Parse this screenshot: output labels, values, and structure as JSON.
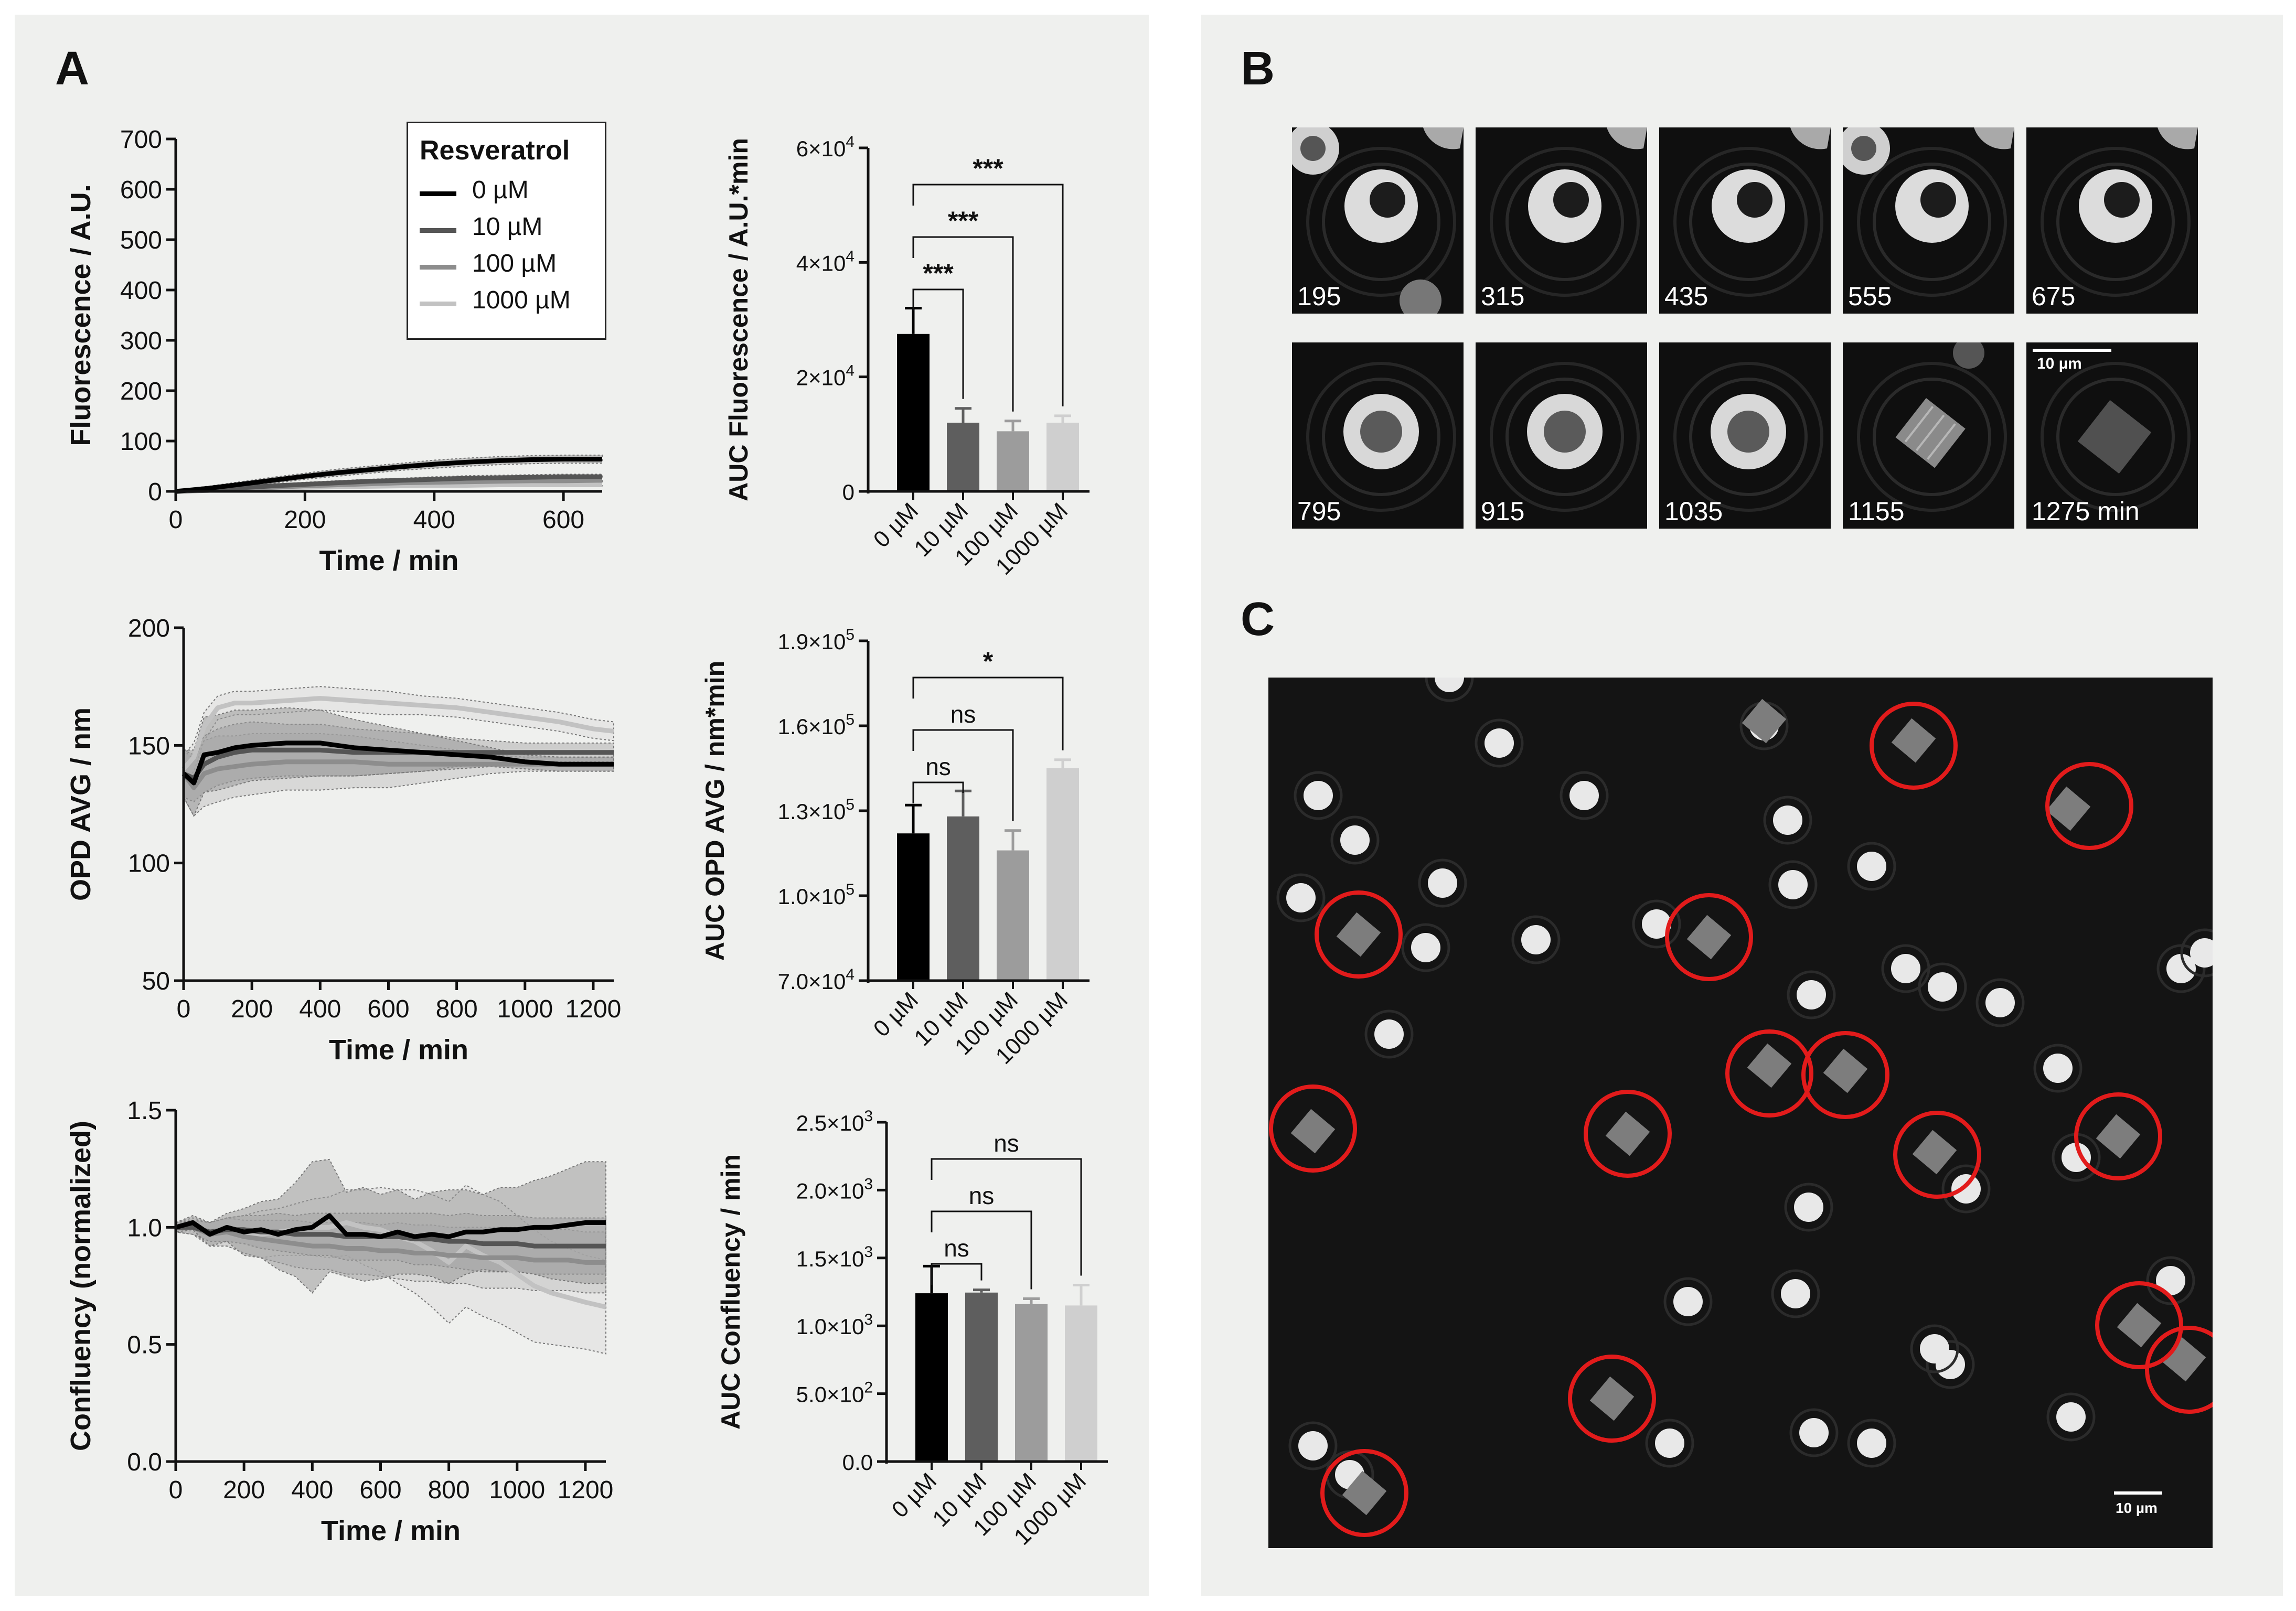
{
  "panels": {
    "a": "A",
    "b": "B",
    "c": "C"
  },
  "legend": {
    "title": "Resveratrol",
    "items": [
      "0 µM",
      "10 µM",
      "100 µM",
      "1000 µM"
    ]
  },
  "colors": {
    "series": [
      "#000000",
      "#555555",
      "#8d8d8d",
      "#c2c2c2"
    ],
    "panel_bg": "#eff0ee",
    "highlight_circle": "#e21b1b"
  },
  "chart_data": [
    {
      "id": "fluor_time",
      "type": "line",
      "ylabel": "Fluorescence / A.U.",
      "xlabel": "Time / min",
      "xlim": [
        0,
        660
      ],
      "ylim": [
        0,
        700
      ],
      "x_ticks": [
        "0",
        "200",
        "400",
        "600"
      ],
      "y_ticks": [
        "0",
        "100",
        "200",
        "300",
        "400",
        "500",
        "600",
        "700"
      ],
      "legend": "top-right",
      "series": [
        {
          "name": "0 µM",
          "x": [
            0,
            50,
            100,
            150,
            200,
            250,
            300,
            350,
            400,
            450,
            500,
            550,
            600,
            660
          ],
          "y": [
            0,
            6,
            14,
            22,
            30,
            37,
            43,
            49,
            54,
            58,
            61,
            63,
            64,
            64
          ],
          "band": [
            3,
            4,
            5,
            6,
            6,
            7,
            7,
            7,
            8,
            8,
            8,
            8,
            8,
            8
          ]
        },
        {
          "name": "10 µM",
          "x": [
            0,
            50,
            100,
            150,
            200,
            250,
            300,
            350,
            400,
            450,
            500,
            550,
            600,
            660
          ],
          "y": [
            0,
            3,
            7,
            11,
            14,
            17,
            20,
            22,
            24,
            26,
            27,
            28,
            29,
            29
          ],
          "band": [
            2,
            3,
            3,
            3,
            4,
            4,
            4,
            4,
            5,
            5,
            5,
            5,
            5,
            5
          ]
        },
        {
          "name": "100 µM",
          "x": [
            0,
            50,
            100,
            150,
            200,
            250,
            300,
            350,
            400,
            450,
            500,
            550,
            600,
            660
          ],
          "y": [
            0,
            2,
            5,
            8,
            11,
            13,
            15,
            17,
            18,
            19,
            20,
            21,
            21,
            22
          ],
          "band": [
            1,
            2,
            2,
            3,
            3,
            3,
            3,
            3,
            3,
            3,
            3,
            3,
            3,
            3
          ]
        },
        {
          "name": "1000 µM",
          "x": [
            0,
            50,
            100,
            150,
            200,
            250,
            300,
            350,
            400,
            450,
            500,
            550,
            600,
            660
          ],
          "y": [
            0,
            2,
            4,
            6,
            8,
            9,
            10,
            11,
            12,
            12,
            13,
            13,
            13,
            13
          ],
          "band": [
            1,
            1,
            2,
            2,
            2,
            2,
            2,
            2,
            2,
            2,
            2,
            2,
            2,
            2
          ]
        }
      ]
    },
    {
      "id": "fluor_auc",
      "type": "bar",
      "ylabel": "AUC Fluorescence / A.U.*min",
      "categories": [
        "0 µM",
        "10 µM",
        "100 µM",
        "1000 µM"
      ],
      "values": [
        27500,
        12000,
        10500,
        12000
      ],
      "errors": [
        4500,
        2500,
        1800,
        1200
      ],
      "ylim": [
        0,
        60000
      ],
      "y_tick_values": [
        0,
        20000,
        40000,
        60000
      ],
      "y_tick_base": [
        "0",
        "2×10",
        "4×10",
        "6×10"
      ],
      "y_tick_exp": [
        "",
        "4",
        "4",
        "4"
      ],
      "significance": [
        {
          "from": 0,
          "to": 1,
          "label": "***"
        },
        {
          "from": 0,
          "to": 2,
          "label": "***"
        },
        {
          "from": 0,
          "to": 3,
          "label": "***"
        }
      ]
    },
    {
      "id": "opd_time",
      "type": "line",
      "ylabel": "OPD AVG / nm",
      "xlabel": "Time / min",
      "xlim": [
        0,
        1260
      ],
      "ylim": [
        50,
        200
      ],
      "x_ticks": [
        "0",
        "200",
        "400",
        "600",
        "800",
        "1000",
        "1200"
      ],
      "y_ticks": [
        "50",
        "100",
        "150",
        "200"
      ],
      "series": [
        {
          "name": "0 µM",
          "x": [
            0,
            30,
            60,
            100,
            150,
            200,
            300,
            400,
            500,
            600,
            700,
            800,
            900,
            1000,
            1100,
            1200,
            1260
          ],
          "y": [
            138,
            134,
            146,
            147,
            149,
            150,
            151,
            151,
            149,
            148,
            147,
            146,
            145,
            143,
            142,
            142,
            142
          ],
          "band": [
            10,
            14,
            16,
            16,
            16,
            15,
            15,
            14,
            12,
            10,
            8,
            6,
            4,
            3,
            3,
            3,
            3
          ]
        },
        {
          "name": "10 µM",
          "x": [
            0,
            30,
            60,
            100,
            150,
            200,
            300,
            400,
            500,
            600,
            700,
            800,
            900,
            1000,
            1100,
            1200,
            1260
          ],
          "y": [
            138,
            136,
            142,
            145,
            147,
            148,
            148,
            148,
            147,
            147,
            147,
            147,
            147,
            147,
            147,
            147,
            147
          ],
          "band": [
            10,
            10,
            12,
            12,
            12,
            12,
            11,
            11,
            10,
            9,
            8,
            6,
            5,
            4,
            4,
            4,
            4
          ]
        },
        {
          "name": "100 µM",
          "x": [
            0,
            30,
            60,
            100,
            150,
            200,
            300,
            400,
            500,
            600,
            700,
            800,
            900,
            1000,
            1100,
            1200,
            1260
          ],
          "y": [
            138,
            132,
            138,
            140,
            141,
            142,
            143,
            143,
            143,
            142,
            142,
            142,
            142,
            142,
            142,
            142,
            142
          ],
          "band": [
            10,
            12,
            14,
            14,
            13,
            13,
            12,
            12,
            11,
            10,
            8,
            6,
            4,
            3,
            3,
            3,
            3
          ]
        },
        {
          "name": "1000 µM",
          "x": [
            0,
            30,
            60,
            100,
            150,
            200,
            300,
            400,
            500,
            600,
            700,
            800,
            900,
            1000,
            1100,
            1200,
            1260
          ],
          "y": [
            140,
            145,
            158,
            166,
            168,
            168,
            169,
            170,
            169,
            168,
            167,
            166,
            164,
            162,
            160,
            157,
            156
          ],
          "band": [
            6,
            6,
            6,
            5,
            5,
            5,
            5,
            5,
            5,
            5,
            4,
            4,
            4,
            4,
            4,
            4,
            4
          ]
        }
      ]
    },
    {
      "id": "opd_auc",
      "type": "bar",
      "ylabel": "AUC OPD AVG / nm*min",
      "categories": [
        "0 µM",
        "10 µM",
        "100 µM",
        "1000 µM"
      ],
      "values": [
        122000,
        128000,
        116000,
        145000
      ],
      "errors": [
        10000,
        9000,
        7000,
        3000
      ],
      "ylim": [
        70000,
        190000
      ],
      "y_tick_values": [
        70000,
        100000,
        130000,
        160000,
        190000
      ],
      "y_tick_base": [
        "7.0×10",
        "1.0×10",
        "1.3×10",
        "1.6×10",
        "1.9×10"
      ],
      "y_tick_exp": [
        "4",
        "5",
        "5",
        "5",
        "5"
      ],
      "significance": [
        {
          "from": 0,
          "to": 1,
          "label": "ns"
        },
        {
          "from": 0,
          "to": 2,
          "label": "ns"
        },
        {
          "from": 0,
          "to": 3,
          "label": "*"
        }
      ]
    },
    {
      "id": "conf_time",
      "type": "line",
      "ylabel": "Confluency (normalized)",
      "xlabel": "Time / min",
      "xlim": [
        0,
        1260
      ],
      "ylim": [
        0.0,
        1.5
      ],
      "x_ticks": [
        "0",
        "200",
        "400",
        "600",
        "800",
        "1000",
        "1200"
      ],
      "y_ticks": [
        "0.0",
        "0.5",
        "1.0",
        "1.5"
      ],
      "series": [
        {
          "name": "0 µM",
          "x": [
            0,
            50,
            100,
            150,
            200,
            250,
            300,
            350,
            400,
            450,
            500,
            550,
            600,
            650,
            700,
            750,
            800,
            850,
            900,
            950,
            1000,
            1050,
            1100,
            1150,
            1200,
            1260
          ],
          "y": [
            1.0,
            1.02,
            0.97,
            1.0,
            0.98,
            0.99,
            0.97,
            0.99,
            1.0,
            1.05,
            0.97,
            0.97,
            0.96,
            0.98,
            0.96,
            0.97,
            0.96,
            0.98,
            0.98,
            0.99,
            0.99,
            1.0,
            1.0,
            1.01,
            1.02,
            1.02
          ],
          "band": [
            0.02,
            0.03,
            0.05,
            0.06,
            0.1,
            0.12,
            0.15,
            0.2,
            0.28,
            0.24,
            0.18,
            0.2,
            0.18,
            0.18,
            0.16,
            0.18,
            0.2,
            0.18,
            0.16,
            0.18,
            0.18,
            0.2,
            0.22,
            0.24,
            0.26,
            0.26
          ]
        },
        {
          "name": "10 µM",
          "x": [
            0,
            50,
            100,
            150,
            200,
            250,
            300,
            350,
            400,
            450,
            500,
            550,
            600,
            650,
            700,
            750,
            800,
            850,
            900,
            950,
            1000,
            1050,
            1100,
            1150,
            1200,
            1260
          ],
          "y": [
            1.0,
            1.0,
            0.98,
            0.99,
            0.99,
            0.98,
            0.98,
            0.97,
            0.97,
            0.97,
            0.96,
            0.96,
            0.96,
            0.96,
            0.95,
            0.95,
            0.94,
            0.94,
            0.93,
            0.93,
            0.93,
            0.92,
            0.92,
            0.92,
            0.92,
            0.92
          ],
          "band": [
            0.02,
            0.03,
            0.04,
            0.05,
            0.06,
            0.07,
            0.08,
            0.08,
            0.09,
            0.09,
            0.1,
            0.1,
            0.1,
            0.1,
            0.11,
            0.11,
            0.11,
            0.12,
            0.12,
            0.12,
            0.12,
            0.12,
            0.12,
            0.12,
            0.12,
            0.12
          ]
        },
        {
          "name": "100 µM",
          "x": [
            0,
            50,
            100,
            150,
            200,
            250,
            300,
            350,
            400,
            450,
            500,
            550,
            600,
            650,
            700,
            750,
            800,
            850,
            900,
            950,
            1000,
            1050,
            1100,
            1150,
            1200,
            1260
          ],
          "y": [
            1.0,
            1.0,
            0.97,
            0.98,
            0.96,
            0.95,
            0.94,
            0.93,
            0.92,
            0.92,
            0.91,
            0.91,
            0.9,
            0.9,
            0.89,
            0.89,
            0.88,
            0.88,
            0.87,
            0.87,
            0.87,
            0.86,
            0.86,
            0.86,
            0.85,
            0.85
          ],
          "band": [
            0.02,
            0.03,
            0.05,
            0.06,
            0.07,
            0.08,
            0.09,
            0.1,
            0.1,
            0.1,
            0.11,
            0.11,
            0.11,
            0.12,
            0.12,
            0.12,
            0.12,
            0.12,
            0.13,
            0.13,
            0.13,
            0.13,
            0.13,
            0.13,
            0.13,
            0.13
          ]
        },
        {
          "name": "1000 µM",
          "x": [
            0,
            50,
            100,
            150,
            200,
            250,
            300,
            350,
            400,
            450,
            500,
            550,
            600,
            650,
            700,
            750,
            800,
            850,
            900,
            950,
            1000,
            1050,
            1100,
            1150,
            1200,
            1260
          ],
          "y": [
            1.0,
            1.01,
            0.97,
            0.98,
            0.97,
            0.97,
            0.98,
            0.99,
            1.0,
            1.0,
            1.02,
            1.0,
            0.99,
            0.96,
            0.94,
            0.9,
            0.85,
            0.92,
            0.88,
            0.85,
            0.8,
            0.75,
            0.72,
            0.7,
            0.68,
            0.66
          ],
          "band": [
            0.02,
            0.03,
            0.05,
            0.06,
            0.08,
            0.1,
            0.1,
            0.11,
            0.12,
            0.13,
            0.14,
            0.16,
            0.18,
            0.2,
            0.22,
            0.24,
            0.26,
            0.26,
            0.26,
            0.26,
            0.25,
            0.24,
            0.22,
            0.21,
            0.2,
            0.2
          ]
        }
      ]
    },
    {
      "id": "conf_auc",
      "type": "bar",
      "ylabel": "AUC Confluency / min",
      "categories": [
        "0 µM",
        "10 µM",
        "100 µM",
        "1000 µM"
      ],
      "values": [
        1240,
        1245,
        1160,
        1150
      ],
      "errors": [
        200,
        20,
        40,
        150
      ],
      "ylim": [
        0,
        2500
      ],
      "y_tick_values": [
        0,
        500,
        1000,
        1500,
        2000,
        2500
      ],
      "y_tick_base": [
        "0.0",
        "5.0×10",
        "1.0×10",
        "1.5×10",
        "2.0×10",
        "2.5×10"
      ],
      "y_tick_exp": [
        "",
        "2",
        "3",
        "3",
        "3",
        "3"
      ],
      "significance": [
        {
          "from": 0,
          "to": 1,
          "label": "ns"
        },
        {
          "from": 0,
          "to": 2,
          "label": "ns"
        },
        {
          "from": 0,
          "to": 3,
          "label": "ns"
        }
      ]
    }
  ],
  "micrographs": {
    "labels": [
      "195",
      "315",
      "435",
      "555",
      "675",
      "795",
      "915",
      "1035",
      "1155",
      "1275 min"
    ],
    "scale_label": "10 µm"
  },
  "overview": {
    "scale_label": "10 µm"
  }
}
